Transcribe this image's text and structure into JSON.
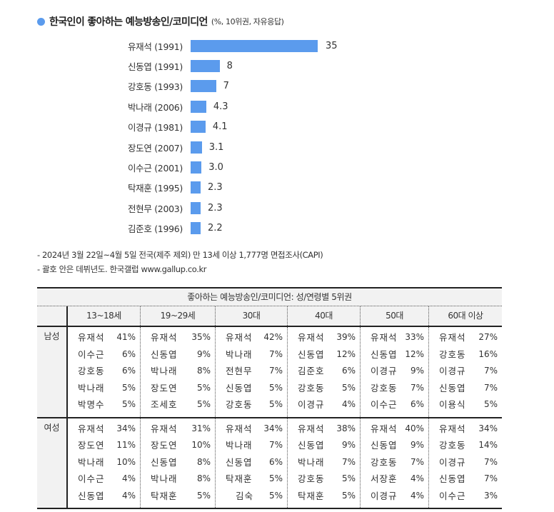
{
  "header": {
    "title": "한국인이 좋아하는 예능방송인/코미디언",
    "subtitle": "(%, 10위권, 자유응답)",
    "bullet_color": "#5b9bed"
  },
  "chart_data": {
    "type": "bar",
    "orientation": "horizontal",
    "title": "한국인이 좋아하는 예능방송인/코미디언",
    "subtitle": "(%, 10위권, 자유응답)",
    "xlabel": "",
    "ylabel": "",
    "bar_color": "#5b9bed",
    "grid": false,
    "categories": [
      "유재석 (1991)",
      "신동엽 (1991)",
      "강호동 (1993)",
      "박나래 (2006)",
      "이경규 (1981)",
      "장도연 (2007)",
      "이수근 (2001)",
      "탁재훈 (1995)",
      "전현무 (2003)",
      "김준호 (1996)"
    ],
    "values": [
      35,
      8,
      7,
      4.3,
      4.1,
      3.1,
      3.0,
      2.3,
      2.3,
      2.2
    ],
    "value_labels": [
      "35",
      "8",
      "7",
      "4.3",
      "4.1",
      "3.1",
      "3.0",
      "2.3",
      "2.3",
      "2.2"
    ]
  },
  "notes": [
    "- 2024년 3월 22일~4월 5일 전국(제주 제외) 만 13세 이상 1,777명 면접조사(CAPI)",
    "- 괄호 안은 데뷔년도. 한국갤럽 www.gallup.co.kr"
  ],
  "table": {
    "title": "좋아하는 예능방송인/코미디언: 성/연령별 5위권",
    "columns": [
      "13~18세",
      "19~29세",
      "30대",
      "40대",
      "50대",
      "60대 이상"
    ],
    "groups": [
      {
        "label": "남성",
        "cols": [
          [
            [
              "유재석",
              "41%"
            ],
            [
              "이수근",
              "6%"
            ],
            [
              "강호동",
              "6%"
            ],
            [
              "박나래",
              "5%"
            ],
            [
              "박명수",
              "5%"
            ]
          ],
          [
            [
              "유재석",
              "35%"
            ],
            [
              "신동엽",
              "9%"
            ],
            [
              "박나래",
              "8%"
            ],
            [
              "장도연",
              "5%"
            ],
            [
              "조세호",
              "5%"
            ]
          ],
          [
            [
              "유재석",
              "42%"
            ],
            [
              "박나래",
              "7%"
            ],
            [
              "전현무",
              "7%"
            ],
            [
              "신동엽",
              "5%"
            ],
            [
              "강호동",
              "5%"
            ]
          ],
          [
            [
              "유재석",
              "39%"
            ],
            [
              "신동엽",
              "12%"
            ],
            [
              "김준호",
              "6%"
            ],
            [
              "강호동",
              "5%"
            ],
            [
              "이경규",
              "4%"
            ]
          ],
          [
            [
              "유재석",
              "33%"
            ],
            [
              "신동엽",
              "12%"
            ],
            [
              "이경규",
              "9%"
            ],
            [
              "강호동",
              "7%"
            ],
            [
              "이수근",
              "6%"
            ]
          ],
          [
            [
              "유재석",
              "27%"
            ],
            [
              "강호동",
              "16%"
            ],
            [
              "이경규",
              "7%"
            ],
            [
              "신동엽",
              "7%"
            ],
            [
              "이용식",
              "5%"
            ]
          ]
        ]
      },
      {
        "label": "여성",
        "cols": [
          [
            [
              "유재석",
              "34%"
            ],
            [
              "장도연",
              "11%"
            ],
            [
              "박나래",
              "10%"
            ],
            [
              "이수근",
              "4%"
            ],
            [
              "신동엽",
              "4%"
            ]
          ],
          [
            [
              "유재석",
              "31%"
            ],
            [
              "장도연",
              "10%"
            ],
            [
              "신동엽",
              "8%"
            ],
            [
              "박나래",
              "8%"
            ],
            [
              "탁재훈",
              "5%"
            ]
          ],
          [
            [
              "유재석",
              "34%"
            ],
            [
              "박나래",
              "7%"
            ],
            [
              "신동엽",
              "6%"
            ],
            [
              "탁재훈",
              "5%"
            ],
            [
              "김숙",
              "5%"
            ]
          ],
          [
            [
              "유재석",
              "38%"
            ],
            [
              "신동엽",
              "9%"
            ],
            [
              "박나래",
              "7%"
            ],
            [
              "강호동",
              "5%"
            ],
            [
              "탁재훈",
              "5%"
            ]
          ],
          [
            [
              "유재석",
              "40%"
            ],
            [
              "신동엽",
              "9%"
            ],
            [
              "강호동",
              "7%"
            ],
            [
              "서장훈",
              "4%"
            ],
            [
              "이경규",
              "4%"
            ]
          ],
          [
            [
              "유재석",
              "34%"
            ],
            [
              "강호동",
              "14%"
            ],
            [
              "이경규",
              "7%"
            ],
            [
              "신동엽",
              "7%"
            ],
            [
              "이수근",
              "3%"
            ]
          ]
        ]
      }
    ]
  }
}
